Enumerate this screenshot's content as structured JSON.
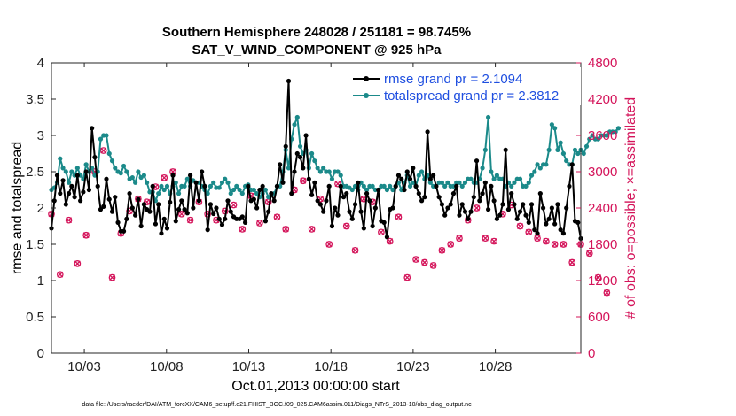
{
  "chart_data": {
    "type": "line",
    "title": "Southern Hemisphere 248028 / 251181 = 98.745%",
    "subtitle": "SAT_V_WIND_COMPONENT @ 925 hPa",
    "xlabel": "Oct.01,2013 00:00:00 start",
    "ylabel": "rmse and totalspread",
    "y2label": "# of obs: o=possible; ×=assimilated",
    "ylim": [
      0,
      4
    ],
    "y2lim": [
      0,
      4800
    ],
    "xlim": [
      1,
      33.2
    ],
    "x_ticks": [
      3,
      8,
      13,
      18,
      23,
      28
    ],
    "x_tick_labels": [
      "10/03",
      "10/08",
      "10/13",
      "10/18",
      "10/23",
      "10/28"
    ],
    "y_ticks": [
      0,
      0.5,
      1,
      1.5,
      2,
      2.5,
      3,
      3.5,
      4
    ],
    "y_tick_labels": [
      "0",
      "0.5",
      "1",
      "1.5",
      "2",
      "2.5",
      "3",
      "3.5",
      "4"
    ],
    "y2_ticks": [
      0,
      600,
      1200,
      1800,
      2400,
      3000,
      3600,
      4200,
      4800
    ],
    "y2_tick_labels": [
      "0",
      "600",
      "1200",
      "1800",
      "2400",
      "3000",
      "3600",
      "4200",
      "4800"
    ],
    "footnote": "data file: /Users/raeder/DAI/ATM_forcXX/CAM6_setup/f.e21.FHIST_BGC.f09_025.CAM6assim.011/Diags_NTrS_2013-10/obs_diag_output.nc",
    "colors": {
      "rmse": "#000000",
      "spread": "#1b8a8a",
      "obs": "#d4145a",
      "legend_text": "#1f4fe0"
    },
    "series": [
      {
        "name": "rmse grand pr = 2.1094",
        "color": "#000000",
        "values": [
          1.72,
          2.1,
          2.45,
          2.2,
          2.38,
          2.05,
          2.2,
          2.3,
          2.15,
          2.45,
          2.1,
          2.22,
          2.5,
          2.25,
          3.1,
          2.7,
          2.3,
          1.98,
          2.02,
          2.4,
          2.12,
          1.95,
          2.15,
          1.8,
          1.68,
          1.68,
          1.85,
          2.2,
          2.0,
          1.9,
          2.12,
          1.75,
          2.05,
          1.98,
          1.95,
          2.3,
          1.78,
          2.05,
          1.65,
          1.85,
          1.72,
          2.08,
          2.45,
          1.82,
          1.98,
          2.1,
          1.98,
          1.93,
          2.45,
          2.0,
          2.35,
          2.1,
          2.5,
          2.3,
          1.7,
          2.05,
          1.92,
          2.0,
          1.85,
          1.77,
          1.85,
          2.1,
          1.95,
          1.88,
          1.85,
          1.85,
          1.88,
          1.8,
          2.3,
          2.1,
          2.12,
          2.0,
          2.25,
          2.3,
          1.82,
          1.95,
          2.2,
          2.1,
          2.3,
          2.6,
          2.35,
          2.85,
          3.75,
          2.2,
          2.5,
          2.75,
          2.7,
          2.55,
          3.0,
          2.4,
          2.18,
          2.35,
          2.1,
          2.05,
          1.95,
          2.1,
          2.3,
          1.75,
          2.0,
          1.9,
          2.3,
          2.15,
          2.2,
          1.95,
          1.85,
          2.05,
          2.35,
          1.95,
          1.72,
          2.2,
          2.1,
          1.75,
          2.0,
          2.25,
          1.82,
          1.8,
          1.6,
          1.98,
          2.0,
          2.3,
          2.45,
          2.4,
          2.25,
          2.5,
          2.4,
          2.55,
          2.3,
          2.2,
          2.1,
          2.15,
          3.05,
          2.4,
          2.45,
          2.3,
          2.15,
          2.05,
          1.9,
          2.0,
          2.05,
          2.2,
          2.3,
          1.9,
          2.05,
          1.95,
          1.85,
          1.95,
          2.15,
          2.65,
          2.1,
          2.2,
          2.35,
          1.98,
          2.3,
          2.1,
          1.85,
          1.9,
          2.05,
          2.8,
          1.98,
          2.2,
          2.05,
          1.85,
          1.95,
          2.05,
          1.9,
          1.8,
          2.05,
          1.7,
          1.65,
          2.2,
          2.0,
          1.78,
          1.85,
          2.0,
          1.78,
          2.05,
          1.7,
          1.65,
          2.0,
          2.3,
          2.6,
          1.82,
          1.8,
          1.58
        ]
      },
      {
        "name": "totalspread grand pr = 2.3812",
        "color": "#1b8a8a",
        "values": [
          2.25,
          2.28,
          2.35,
          2.68,
          2.55,
          2.5,
          2.35,
          2.5,
          2.45,
          2.55,
          2.45,
          2.4,
          2.6,
          2.5,
          2.55,
          2.45,
          2.5,
          2.95,
          3.0,
          3.0,
          2.75,
          2.65,
          2.55,
          2.5,
          2.48,
          2.58,
          2.5,
          2.4,
          2.42,
          2.35,
          2.5,
          2.42,
          2.45,
          2.35,
          2.22,
          2.22,
          2.1,
          2.2,
          2.3,
          2.25,
          2.3,
          2.2,
          2.3,
          2.35,
          2.2,
          2.3,
          2.3,
          2.4,
          2.3,
          2.38,
          2.35,
          2.35,
          2.3,
          2.25,
          2.2,
          2.3,
          2.35,
          2.28,
          2.28,
          2.35,
          2.4,
          2.35,
          2.2,
          2.25,
          2.3,
          2.25,
          2.2,
          2.3,
          2.32,
          2.25,
          2.25,
          2.2,
          2.15,
          2.2,
          2.25,
          2.15,
          2.18,
          2.2,
          2.3,
          2.3,
          2.5,
          2.8,
          2.55,
          2.95,
          3.15,
          3.25,
          2.85,
          2.75,
          2.8,
          2.55,
          2.75,
          2.65,
          2.55,
          2.5,
          2.55,
          2.5,
          2.5,
          2.4,
          2.5,
          2.5,
          2.45,
          2.3,
          2.3,
          2.28,
          2.25,
          2.3,
          2.25,
          2.35,
          2.3,
          2.25,
          2.3,
          2.3,
          2.25,
          2.25,
          2.3,
          2.3,
          2.25,
          2.3,
          2.25,
          2.3,
          2.35,
          2.25,
          2.35,
          2.45,
          2.3,
          2.35,
          2.3,
          2.45,
          2.5,
          2.4,
          2.45,
          2.35,
          2.3,
          2.3,
          2.35,
          2.35,
          2.3,
          2.35,
          2.3,
          2.3,
          2.35,
          2.35,
          2.3,
          2.35,
          2.4,
          2.4,
          2.35,
          2.35,
          2.4,
          2.55,
          2.8,
          3.25,
          2.5,
          2.4,
          2.45,
          2.4,
          2.4,
          2.3,
          2.35,
          2.3,
          2.35,
          2.4,
          2.4,
          2.3,
          2.3,
          2.35,
          2.45,
          2.5,
          2.6,
          2.55,
          2.6,
          2.6,
          2.8,
          3.15,
          3.1,
          2.8,
          2.9,
          2.75,
          2.65,
          2.6,
          2.6,
          2.8,
          2.75,
          2.8,
          2.75,
          2.85,
          2.95,
          3.0,
          2.95,
          2.95,
          3.0,
          3.0,
          3.0,
          3.05,
          3.05,
          3.05,
          3.1
        ]
      },
      {
        "name": "obs possible",
        "color": "#d4145a",
        "marker": "o",
        "values": [
          2300,
          1780,
          2500,
          1300,
          1050,
          2300,
          2200,
          1150,
          950,
          1480,
          1700,
          1350,
          1950,
          2000,
          2750,
          3000,
          3000,
          3500,
          3350,
          2700,
          1300,
          1250,
          2350,
          2200,
          1980,
          2600,
          2950,
          2350,
          2800,
          2700,
          2550,
          2550,
          2350,
          2500,
          2300,
          2300,
          2750,
          3050,
          3000,
          2900,
          2350,
          2200,
          3000,
          2150,
          2050,
          2300,
          2700,
          2450,
          2200,
          2100,
          2600,
          2500,
          2500,
          2400,
          2300,
          2300,
          2000,
          2200,
          2000,
          2100,
          2350,
          2800,
          2000,
          2450,
          1800,
          2300,
          2050,
          2750,
          2800,
          2600,
          2400,
          2100,
          2150,
          2200,
          2050,
          2500,
          2350,
          2400,
          2250,
          2300,
          2250,
          2050,
          2150,
          2750,
          2700,
          2700,
          2900,
          2850,
          2600,
          2200,
          2050,
          2500,
          2500,
          2550,
          2900,
          3000,
          1800,
          1450,
          1500,
          2800,
          2400,
          2200,
          2100,
          1500,
          1650,
          1700,
          2600,
          2400,
          2550,
          2700,
          2800,
          2500,
          2700,
          2550,
          2000,
          1950,
          2000,
          1850,
          2000,
          2150,
          2250,
          2350,
          2400,
          1250,
          1200,
          1100,
          1550,
          1300,
          1350,
          1500,
          1450,
          1300,
          1450,
          1500,
          1600,
          1700,
          1650,
          1700,
          1800,
          1750,
          1800,
          1900,
          2050,
          2100,
          2200,
          2300,
          2200,
          2400,
          2500,
          2500,
          1900,
          1850,
          1800,
          1850,
          2000,
          2200,
          2300,
          2100,
          2200,
          2450,
          2350,
          2200,
          2100,
          2100,
          2200,
          2000,
          2350,
          2200,
          1900,
          1800,
          1700,
          1850,
          1900,
          1750,
          1800,
          1750,
          1650,
          1800,
          1600,
          1700,
          1500,
          1600,
          1700,
          1800,
          1750,
          1800,
          1650,
          1500,
          1400,
          1250,
          1100,
          1200,
          1000
        ]
      }
    ]
  }
}
